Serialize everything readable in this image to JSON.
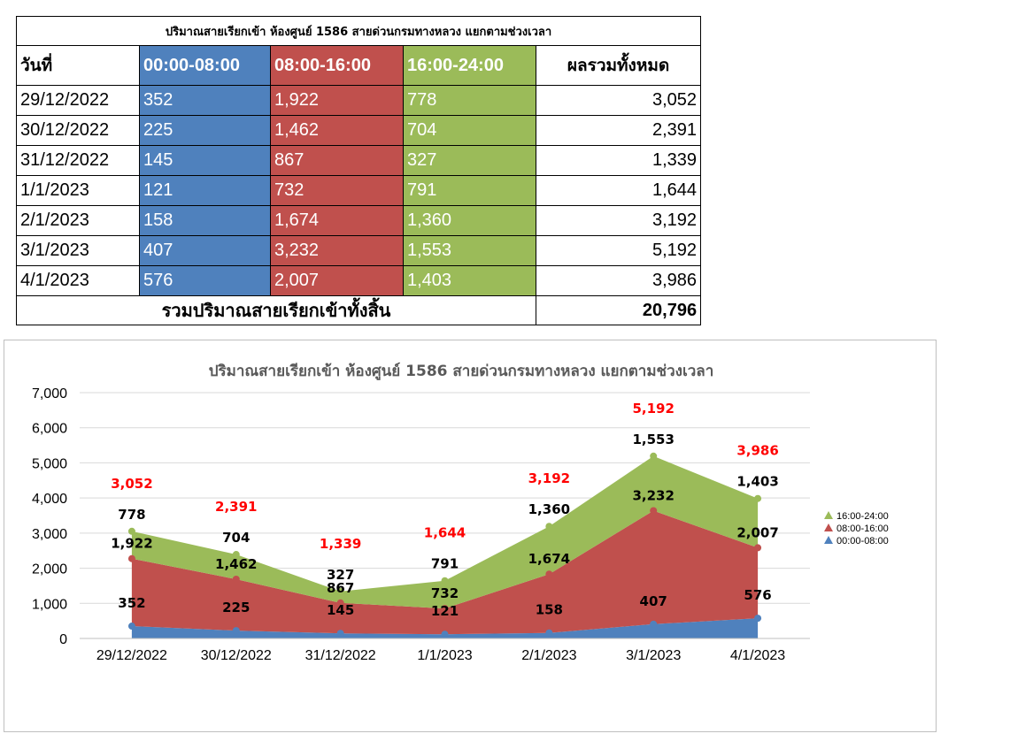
{
  "table": {
    "title": "ปริมาณสายเรียกเข้า ห้องศูนย์ 1586 สายด่วนกรมทางหลวง แยกตามช่วงเวลา",
    "headers": {
      "date": "วันที่",
      "slot1": "00:00-08:00",
      "slot2": "08:00-16:00",
      "slot3": "16:00-24:00",
      "total": "ผลรวมทั้งหมด"
    },
    "rows": [
      {
        "date": "29/12/2022",
        "s1": "352",
        "s2": "1,922",
        "s3": "778",
        "total": "3,052"
      },
      {
        "date": "30/12/2022",
        "s1": "225",
        "s2": "1,462",
        "s3": "704",
        "total": "2,391"
      },
      {
        "date": "31/12/2022",
        "s1": "145",
        "s2": "867",
        "s3": "327",
        "total": "1,339"
      },
      {
        "date": "1/1/2023",
        "s1": "121",
        "s2": "732",
        "s3": "791",
        "total": "1,644"
      },
      {
        "date": "2/1/2023",
        "s1": "158",
        "s2": "1,674",
        "s3": "1,360",
        "total": "3,192"
      },
      {
        "date": "3/1/2023",
        "s1": "407",
        "s2": "3,232",
        "s3": "1,553",
        "total": "5,192"
      },
      {
        "date": "4/1/2023",
        "s1": "576",
        "s2": "2,007",
        "s3": "1,403",
        "total": "3,986"
      }
    ],
    "sum_label": "รวมปริมาณสายเรียกเข้าทั้งสิ้น",
    "sum_value": "20,796"
  },
  "colors": {
    "slot1": "#4f81bd",
    "slot2": "#c0504d",
    "slot3": "#9bbb59",
    "total_label": "#ff0000"
  },
  "chart_data": {
    "type": "area",
    "stacked": true,
    "title": "ปริมาณสายเรียกเข้า ห้องศูนย์ 1586 สายด่วนกรมทางหลวง แยกตามช่วงเวลา",
    "categories": [
      "29/12/2022",
      "30/12/2022",
      "31/12/2022",
      "1/1/2023",
      "2/1/2023",
      "3/1/2023",
      "4/1/2023"
    ],
    "series": [
      {
        "name": "00:00-08:00",
        "values": [
          352,
          225,
          145,
          121,
          158,
          407,
          576
        ]
      },
      {
        "name": "08:00-16:00",
        "values": [
          1922,
          1462,
          867,
          732,
          1674,
          3232,
          2007
        ]
      },
      {
        "name": "16:00-24:00",
        "values": [
          778,
          704,
          327,
          791,
          1360,
          1553,
          1403
        ]
      }
    ],
    "totals": [
      3052,
      2391,
      1339,
      1644,
      3192,
      5192,
      3986
    ],
    "y_ticks": [
      "0",
      "1,000",
      "2,000",
      "3,000",
      "4,000",
      "5,000",
      "6,000",
      "7,000"
    ],
    "ylim": [
      0,
      7000
    ],
    "grid": true,
    "legend_position": "right",
    "legend_order": [
      "16:00-24:00",
      "08:00-16:00",
      "00:00-08:00"
    ]
  }
}
